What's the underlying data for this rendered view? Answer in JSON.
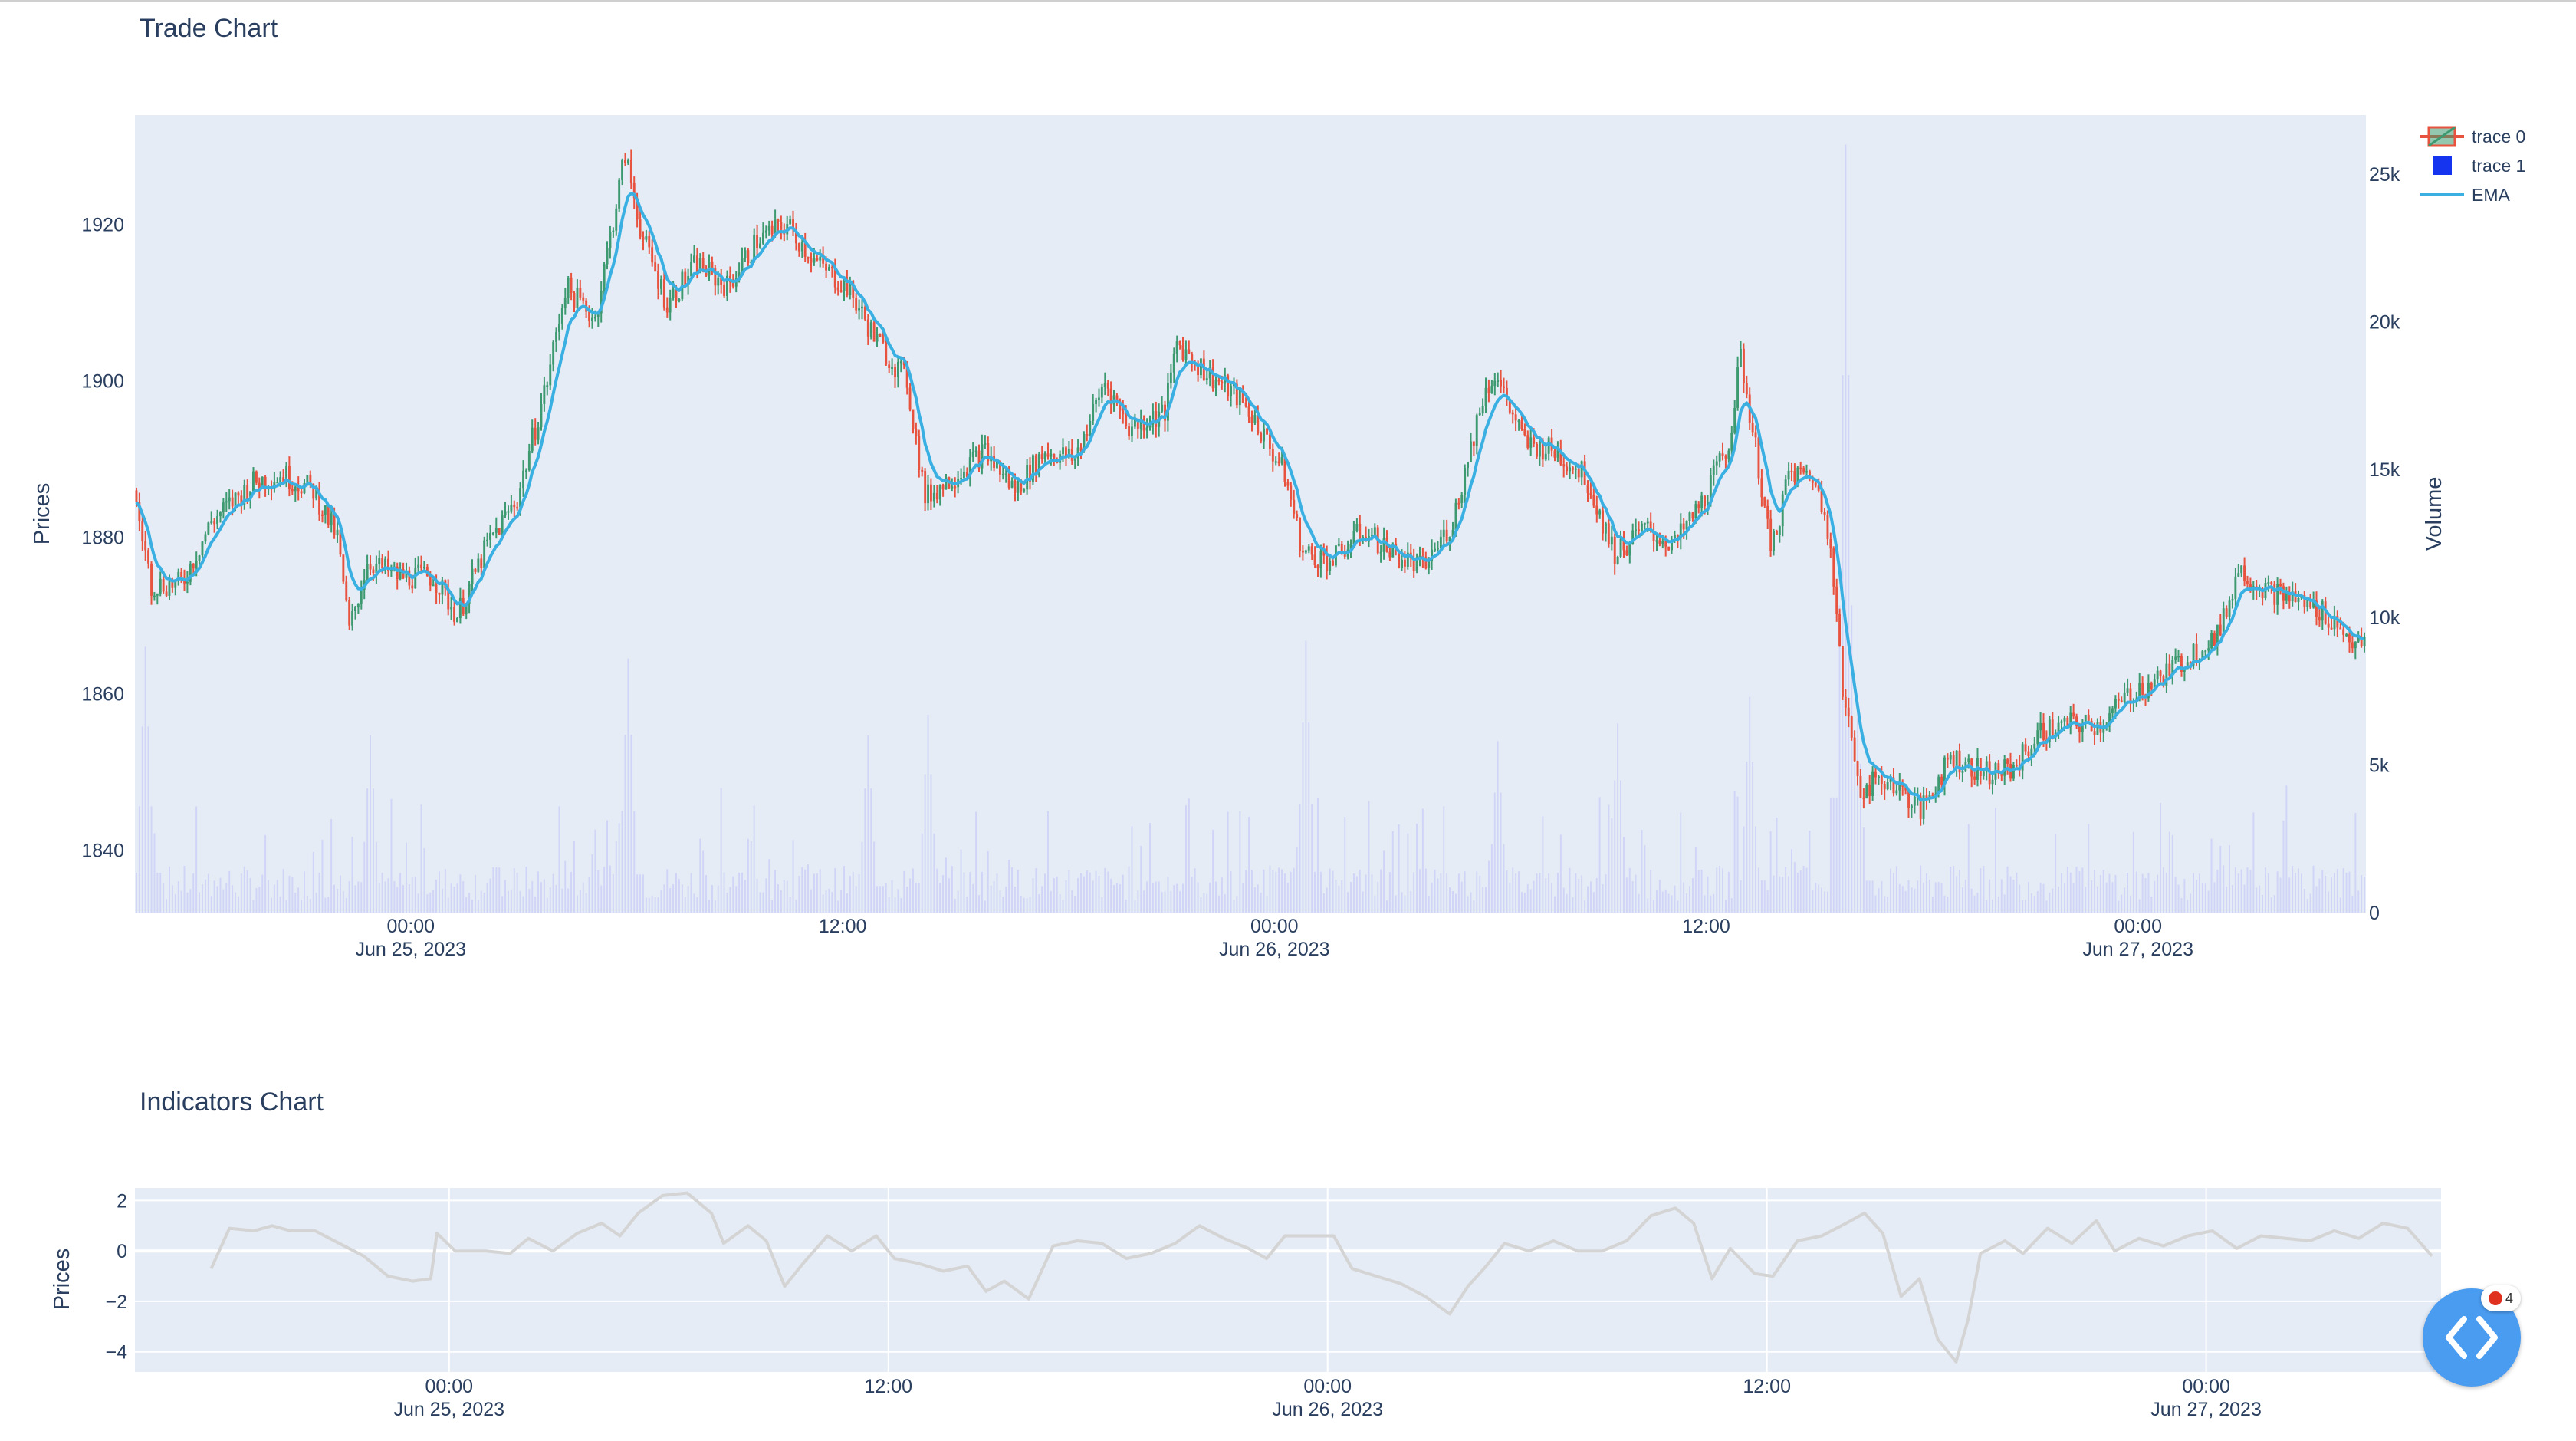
{
  "titles": {
    "trade": "Trade Chart",
    "indicators": "Indicators Chart"
  },
  "badge_count": "4",
  "colors": {
    "increasing": "#3d9970",
    "decreasing": "#e8533f",
    "ema": "#3ab0e2",
    "volume": "#c8ccf5",
    "indicator": "#d4d4d4",
    "plot_bg": "#e5ecf6",
    "action_button": "#4a9cf0"
  },
  "icons": {
    "action_button": "code-brackets-icon",
    "badge": "red-dot-icon"
  },
  "chart_data": [
    {
      "type": "candlestick",
      "title": "Trade Chart",
      "xlabel": "",
      "ylabel": "Prices",
      "y2label": "Volume",
      "x_range": [
        "2023-06-24T16:20",
        "2023-06-27T06:20"
      ],
      "x_ticks": [
        {
          "t": "2023-06-25T00:00",
          "label": [
            "00:00",
            "Jun 25, 2023"
          ]
        },
        {
          "t": "2023-06-25T12:00",
          "label": [
            "12:00",
            ""
          ]
        },
        {
          "t": "2023-06-26T00:00",
          "label": [
            "00:00",
            "Jun 26, 2023"
          ]
        },
        {
          "t": "2023-06-26T12:00",
          "label": [
            "12:00",
            ""
          ]
        },
        {
          "t": "2023-06-27T00:00",
          "label": [
            "00:00",
            "Jun 27, 2023"
          ]
        }
      ],
      "ylim": [
        1832,
        1934
      ],
      "y_ticks": [
        1840,
        1860,
        1880,
        1900,
        1920
      ],
      "y2lim": [
        0,
        27000
      ],
      "y2_ticks": [
        {
          "v": 0,
          "label": "0"
        },
        {
          "v": 5000,
          "label": "5k"
        },
        {
          "v": 10000,
          "label": "10k"
        },
        {
          "v": 15000,
          "label": "15k"
        },
        {
          "v": 20000,
          "label": "20k"
        },
        {
          "v": 25000,
          "label": "25k"
        }
      ],
      "grid": false,
      "legend": {
        "position": "top-right",
        "entries": [
          "trace 0",
          "trace 1",
          "EMA"
        ]
      },
      "price_path": [
        [
          "2023-06-24T16:20",
          1886
        ],
        [
          "2023-06-24T16:50",
          1874
        ],
        [
          "2023-06-24T17:40",
          1874
        ],
        [
          "2023-06-24T18:30",
          1882
        ],
        [
          "2023-06-24T19:40",
          1887
        ],
        [
          "2023-06-24T20:30",
          1888
        ],
        [
          "2023-06-24T21:20",
          1886
        ],
        [
          "2023-06-24T22:00",
          1880
        ],
        [
          "2023-06-24T22:20",
          1868
        ],
        [
          "2023-06-24T22:50",
          1877
        ],
        [
          "2023-06-24T23:40",
          1875
        ],
        [
          "2023-06-25T00:40",
          1875
        ],
        [
          "2023-06-25T01:20",
          1870
        ],
        [
          "2023-06-25T02:10",
          1879
        ],
        [
          "2023-06-25T03:00",
          1885
        ],
        [
          "2023-06-25T03:50",
          1900
        ],
        [
          "2023-06-25T04:20",
          1912
        ],
        [
          "2023-06-25T05:10",
          1908
        ],
        [
          "2023-06-25T06:00",
          1929
        ],
        [
          "2023-06-25T06:30",
          1918
        ],
        [
          "2023-06-25T07:10",
          1910
        ],
        [
          "2023-06-25T08:00",
          1915
        ],
        [
          "2023-06-25T08:50",
          1912
        ],
        [
          "2023-06-25T09:40",
          1918
        ],
        [
          "2023-06-25T10:30",
          1920
        ],
        [
          "2023-06-25T11:20",
          1915
        ],
        [
          "2023-06-25T12:10",
          1912
        ],
        [
          "2023-06-25T13:00",
          1905
        ],
        [
          "2023-06-25T13:50",
          1900
        ],
        [
          "2023-06-25T14:20",
          1885
        ],
        [
          "2023-06-25T15:10",
          1888
        ],
        [
          "2023-06-25T16:00",
          1891
        ],
        [
          "2023-06-25T16:50",
          1886
        ],
        [
          "2023-06-25T17:40",
          1891
        ],
        [
          "2023-06-25T18:30",
          1890
        ],
        [
          "2023-06-25T19:20",
          1900
        ],
        [
          "2023-06-25T20:00",
          1894
        ],
        [
          "2023-06-25T21:00",
          1896
        ],
        [
          "2023-06-25T21:20",
          1905
        ],
        [
          "2023-06-25T22:10",
          1901
        ],
        [
          "2023-06-25T23:00",
          1898
        ],
        [
          "2023-06-25T23:30",
          1895
        ],
        [
          "2023-06-26T00:20",
          1888
        ],
        [
          "2023-06-26T00:50",
          1878
        ],
        [
          "2023-06-26T01:40",
          1877
        ],
        [
          "2023-06-26T02:30",
          1881
        ],
        [
          "2023-06-26T03:20",
          1878
        ],
        [
          "2023-06-26T04:10",
          1876
        ],
        [
          "2023-06-26T05:00",
          1882
        ],
        [
          "2023-06-26T05:50",
          1898
        ],
        [
          "2023-06-26T06:10",
          1901
        ],
        [
          "2023-06-26T07:00",
          1892
        ],
        [
          "2023-06-26T07:50",
          1891
        ],
        [
          "2023-06-26T08:40",
          1888
        ],
        [
          "2023-06-26T09:30",
          1878
        ],
        [
          "2023-06-26T10:20",
          1881
        ],
        [
          "2023-06-26T11:10",
          1879
        ],
        [
          "2023-06-26T12:00",
          1885
        ],
        [
          "2023-06-26T12:40",
          1892
        ],
        [
          "2023-06-26T13:00",
          1903
        ],
        [
          "2023-06-26T13:30",
          1889
        ],
        [
          "2023-06-26T13:50",
          1878
        ],
        [
          "2023-06-26T14:20",
          1888
        ],
        [
          "2023-06-26T15:00",
          1888
        ],
        [
          "2023-06-26T15:30",
          1880
        ],
        [
          "2023-06-26T15:50",
          1860
        ],
        [
          "2023-06-26T16:20",
          1848
        ],
        [
          "2023-06-26T17:10",
          1849
        ],
        [
          "2023-06-26T18:00",
          1845
        ],
        [
          "2023-06-26T18:50",
          1852
        ],
        [
          "2023-06-26T19:40",
          1850
        ],
        [
          "2023-06-26T20:30",
          1850
        ],
        [
          "2023-06-26T21:20",
          1855
        ],
        [
          "2023-06-26T22:10",
          1856
        ],
        [
          "2023-06-26T23:00",
          1856
        ],
        [
          "2023-06-26T23:50",
          1860
        ],
        [
          "2023-06-27T00:40",
          1862
        ],
        [
          "2023-06-27T01:30",
          1865
        ],
        [
          "2023-06-27T02:20",
          1868
        ],
        [
          "2023-06-27T02:50",
          1876
        ],
        [
          "2023-06-27T03:40",
          1873
        ],
        [
          "2023-06-27T04:30",
          1872
        ],
        [
          "2023-06-27T05:20",
          1870
        ],
        [
          "2023-06-27T06:10",
          1866
        ]
      ],
      "volume_peaks": [
        [
          "2023-06-24T16:35",
          9000
        ],
        [
          "2023-06-24T22:50",
          6000
        ],
        [
          "2023-06-25T06:00",
          8600
        ],
        [
          "2023-06-25T12:40",
          6000
        ],
        [
          "2023-06-25T14:20",
          6700
        ],
        [
          "2023-06-26T00:50",
          9200
        ],
        [
          "2023-06-26T06:10",
          5800
        ],
        [
          "2023-06-26T09:30",
          6400
        ],
        [
          "2023-06-26T13:10",
          7300
        ],
        [
          "2023-06-26T15:50",
          26000
        ],
        [
          "2023-06-26T16:10",
          7200
        ]
      ]
    },
    {
      "type": "line",
      "title": "Indicators Chart",
      "xlabel": "",
      "ylabel": "Prices",
      "x_range": [
        "2023-06-24T15:25",
        "2023-06-27T06:25"
      ],
      "x_ticks": [
        {
          "t": "2023-06-25T00:00",
          "label": [
            "00:00",
            "Jun 25, 2023"
          ]
        },
        {
          "t": "2023-06-25T12:00",
          "label": [
            "12:00",
            ""
          ]
        },
        {
          "t": "2023-06-26T00:00",
          "label": [
            "00:00",
            "Jun 26, 2023"
          ]
        },
        {
          "t": "2023-06-26T12:00",
          "label": [
            "12:00",
            ""
          ]
        },
        {
          "t": "2023-06-27T00:00",
          "label": [
            "00:00",
            "Jun 27, 2023"
          ]
        }
      ],
      "ylim": [
        -4.8,
        2.5
      ],
      "y_ticks": [
        {
          "v": 2,
          "label": "2"
        },
        {
          "v": 0,
          "label": "0"
        },
        {
          "v": -2,
          "label": "−2"
        },
        {
          "v": -4,
          "label": "−4"
        }
      ],
      "grid": true,
      "series": [
        {
          "values": [
            [
              "2023-06-24T17:30",
              -0.7
            ],
            [
              "2023-06-24T18:00",
              0.9
            ],
            [
              "2023-06-24T18:40",
              0.8
            ],
            [
              "2023-06-24T19:10",
              1.0
            ],
            [
              "2023-06-24T19:40",
              0.8
            ],
            [
              "2023-06-24T20:20",
              0.8
            ],
            [
              "2023-06-24T21:00",
              0.3
            ],
            [
              "2023-06-24T21:40",
              -0.2
            ],
            [
              "2023-06-24T22:20",
              -1.0
            ],
            [
              "2023-06-24T23:00",
              -1.2
            ],
            [
              "2023-06-24T23:30",
              -1.1
            ],
            [
              "2023-06-24T23:40",
              0.7
            ],
            [
              "2023-06-25T00:10",
              0.0
            ],
            [
              "2023-06-25T01:00",
              0.0
            ],
            [
              "2023-06-25T01:40",
              -0.1
            ],
            [
              "2023-06-25T02:10",
              0.5
            ],
            [
              "2023-06-25T02:50",
              0.0
            ],
            [
              "2023-06-25T03:30",
              0.7
            ],
            [
              "2023-06-25T04:10",
              1.1
            ],
            [
              "2023-06-25T04:40",
              0.6
            ],
            [
              "2023-06-25T05:10",
              1.5
            ],
            [
              "2023-06-25T05:50",
              2.2
            ],
            [
              "2023-06-25T06:30",
              2.3
            ],
            [
              "2023-06-25T07:10",
              1.5
            ],
            [
              "2023-06-25T07:30",
              0.3
            ],
            [
              "2023-06-25T08:10",
              1.0
            ],
            [
              "2023-06-25T08:40",
              0.4
            ],
            [
              "2023-06-25T09:10",
              -1.4
            ],
            [
              "2023-06-25T09:40",
              -0.5
            ],
            [
              "2023-06-25T10:20",
              0.6
            ],
            [
              "2023-06-25T11:00",
              0.0
            ],
            [
              "2023-06-25T11:40",
              0.6
            ],
            [
              "2023-06-25T12:10",
              -0.3
            ],
            [
              "2023-06-25T12:50",
              -0.5
            ],
            [
              "2023-06-25T13:30",
              -0.8
            ],
            [
              "2023-06-25T14:10",
              -0.6
            ],
            [
              "2023-06-25T14:40",
              -1.6
            ],
            [
              "2023-06-25T15:10",
              -1.2
            ],
            [
              "2023-06-25T15:50",
              -1.9
            ],
            [
              "2023-06-25T16:30",
              0.2
            ],
            [
              "2023-06-25T17:10",
              0.4
            ],
            [
              "2023-06-25T17:50",
              0.3
            ],
            [
              "2023-06-25T18:30",
              -0.3
            ],
            [
              "2023-06-25T19:10",
              -0.1
            ],
            [
              "2023-06-25T19:50",
              0.3
            ],
            [
              "2023-06-25T20:30",
              1.0
            ],
            [
              "2023-06-25T21:10",
              0.5
            ],
            [
              "2023-06-25T21:50",
              0.1
            ],
            [
              "2023-06-25T22:20",
              -0.3
            ],
            [
              "2023-06-25T22:50",
              0.6
            ],
            [
              "2023-06-25T23:30",
              0.6
            ],
            [
              "2023-06-26T00:10",
              0.6
            ],
            [
              "2023-06-26T00:40",
              -0.7
            ],
            [
              "2023-06-26T01:20",
              -1.0
            ],
            [
              "2023-06-26T02:00",
              -1.3
            ],
            [
              "2023-06-26T02:40",
              -1.8
            ],
            [
              "2023-06-26T03:20",
              -2.5
            ],
            [
              "2023-06-26T03:50",
              -1.4
            ],
            [
              "2023-06-26T04:20",
              -0.6
            ],
            [
              "2023-06-26T04:50",
              0.3
            ],
            [
              "2023-06-26T05:30",
              0.0
            ],
            [
              "2023-06-26T06:10",
              0.4
            ],
            [
              "2023-06-26T06:50",
              0.0
            ],
            [
              "2023-06-26T07:30",
              0.0
            ],
            [
              "2023-06-26T08:10",
              0.4
            ],
            [
              "2023-06-26T08:50",
              1.4
            ],
            [
              "2023-06-26T09:30",
              1.7
            ],
            [
              "2023-06-26T10:00",
              1.1
            ],
            [
              "2023-06-26T10:30",
              -1.1
            ],
            [
              "2023-06-26T11:00",
              0.1
            ],
            [
              "2023-06-26T11:40",
              -0.9
            ],
            [
              "2023-06-26T12:10",
              -1.0
            ],
            [
              "2023-06-26T12:50",
              0.4
            ],
            [
              "2023-06-26T13:30",
              0.6
            ],
            [
              "2023-06-26T14:10",
              1.1
            ],
            [
              "2023-06-26T14:40",
              1.5
            ],
            [
              "2023-06-26T15:10",
              0.7
            ],
            [
              "2023-06-26T15:40",
              -1.8
            ],
            [
              "2023-06-26T16:10",
              -1.1
            ],
            [
              "2023-06-26T16:40",
              -3.5
            ],
            [
              "2023-06-26T17:10",
              -4.4
            ],
            [
              "2023-06-26T17:30",
              -2.7
            ],
            [
              "2023-06-26T17:50",
              -0.1
            ],
            [
              "2023-06-26T18:30",
              0.4
            ],
            [
              "2023-06-26T19:00",
              -0.1
            ],
            [
              "2023-06-26T19:40",
              0.9
            ],
            [
              "2023-06-26T20:20",
              0.3
            ],
            [
              "2023-06-26T21:00",
              1.2
            ],
            [
              "2023-06-26T21:30",
              0.0
            ],
            [
              "2023-06-26T22:10",
              0.5
            ],
            [
              "2023-06-26T22:50",
              0.2
            ],
            [
              "2023-06-26T23:30",
              0.6
            ],
            [
              "2023-06-27T00:10",
              0.8
            ],
            [
              "2023-06-27T00:50",
              0.1
            ],
            [
              "2023-06-27T01:30",
              0.6
            ],
            [
              "2023-06-27T02:10",
              0.5
            ],
            [
              "2023-06-27T02:50",
              0.4
            ],
            [
              "2023-06-27T03:30",
              0.8
            ],
            [
              "2023-06-27T04:10",
              0.5
            ],
            [
              "2023-06-27T04:50",
              1.1
            ],
            [
              "2023-06-27T05:30",
              0.9
            ],
            [
              "2023-06-27T06:10",
              -0.2
            ]
          ]
        }
      ]
    }
  ]
}
